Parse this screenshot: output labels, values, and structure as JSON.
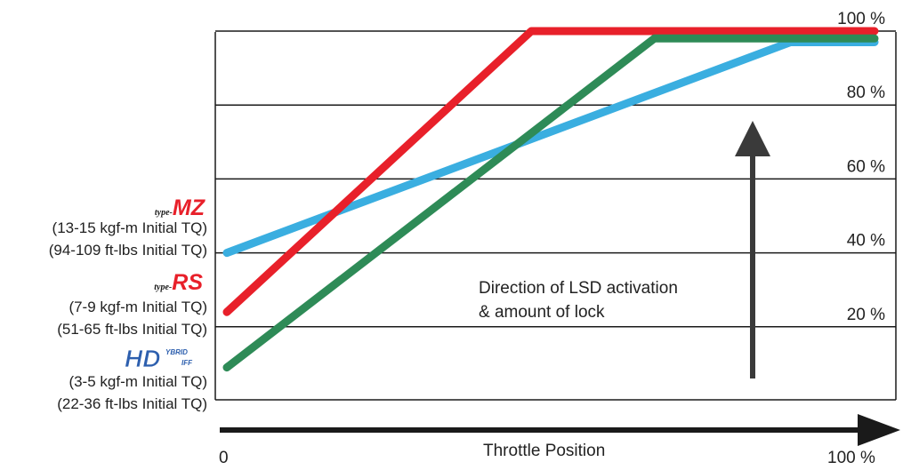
{
  "chart_data": {
    "type": "line",
    "xlabel": "Throttle Position",
    "x_tick_labels": [
      "0",
      "100 %"
    ],
    "y_tick_labels": [
      "20 %",
      "40 %",
      "60 %",
      "80 %",
      "100 %"
    ],
    "xlim": [
      0,
      100
    ],
    "ylim": [
      0,
      100
    ],
    "grid": "horizontal",
    "series": [
      {
        "name": "type-MZ",
        "color": "#e8202a",
        "x": [
          0,
          47,
          100
        ],
        "y": [
          24,
          100,
          100
        ]
      },
      {
        "name": "type-RS",
        "color": "#3aaee0",
        "x": [
          0,
          87,
          100
        ],
        "y": [
          40,
          97,
          97
        ]
      },
      {
        "name": "HYBRID DIFF",
        "color": "#2e8b57",
        "x": [
          0,
          66,
          100
        ],
        "y": [
          9,
          98,
          98
        ]
      }
    ],
    "legend": [
      {
        "logo_prefix": "type-",
        "logo_main": "MZ",
        "logo_color": "#e8202a",
        "lines": [
          "(13-15 kgf-m Initial TQ)",
          "(94-109 ft-lbs Initial TQ)"
        ]
      },
      {
        "logo_prefix": "type-",
        "logo_main": "RS",
        "logo_color": "#e8202a",
        "lines": [
          "(7-9 kgf-m Initial TQ)",
          "(51-65 ft-lbs Initial TQ)"
        ]
      },
      {
        "logo_main": "HD",
        "logo_sub_top": "YBRID",
        "logo_sub_bottom": "IFF",
        "logo_color": "#2d5fae",
        "lines": [
          "(3-5 kgf-m Initial TQ)",
          "(22-36 ft-lbs Initial TQ)"
        ]
      }
    ],
    "annotation": [
      "Direction of LSD activation",
      "& amount of lock"
    ]
  }
}
